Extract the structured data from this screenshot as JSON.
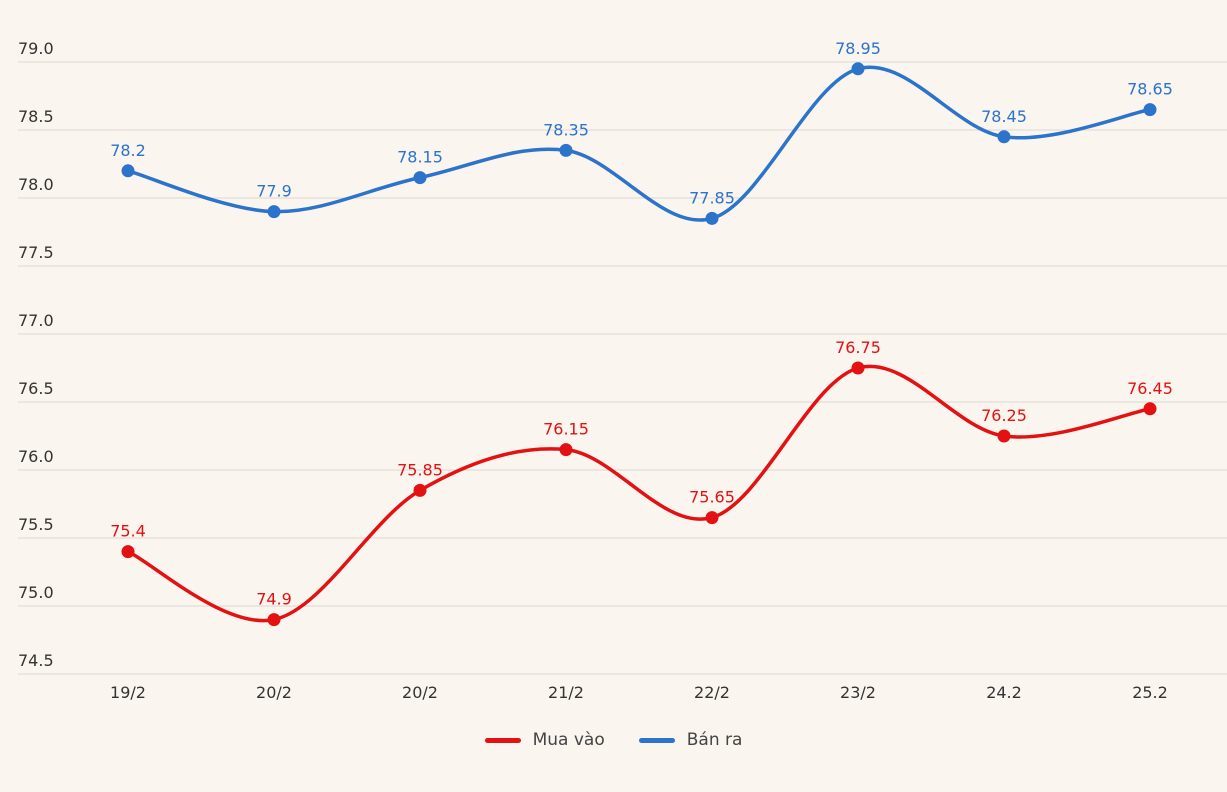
{
  "chart_data": {
    "type": "line",
    "categories": [
      "19/2",
      "20/2",
      "20/2",
      "21/2",
      "22/2",
      "23/2",
      "24.2",
      "25.2"
    ],
    "series": [
      {
        "name": "Mua vào",
        "color": "#e31111",
        "values": [
          75.4,
          74.9,
          75.85,
          76.15,
          75.65,
          76.75,
          76.25,
          76.45
        ]
      },
      {
        "name": "Bán ra",
        "color": "#2c73cb",
        "values": [
          78.2,
          77.9,
          78.15,
          78.35,
          77.85,
          78.95,
          78.45,
          78.65
        ]
      }
    ],
    "ylim": [
      74.5,
      79.0
    ],
    "ytick_step": 0.5,
    "ytick_labels": [
      "74.5",
      "75.0",
      "75.5",
      "76.0",
      "76.5",
      "77.0",
      "77.5",
      "78.0",
      "78.5",
      "79.0"
    ],
    "grid": true,
    "point_labels": true,
    "legend_position": "bottom",
    "title": "",
    "xlabel": "",
    "ylabel": ""
  },
  "legend": {
    "items": [
      {
        "label": "Mua vào",
        "color": "#e31111"
      },
      {
        "label": "Bán ra",
        "color": "#2c73cb"
      }
    ]
  },
  "style": {
    "background": "#faf5ef",
    "grid_color": "#ddd8d2",
    "axis_text_color": "#333333",
    "legend_text_color": "#444444"
  }
}
